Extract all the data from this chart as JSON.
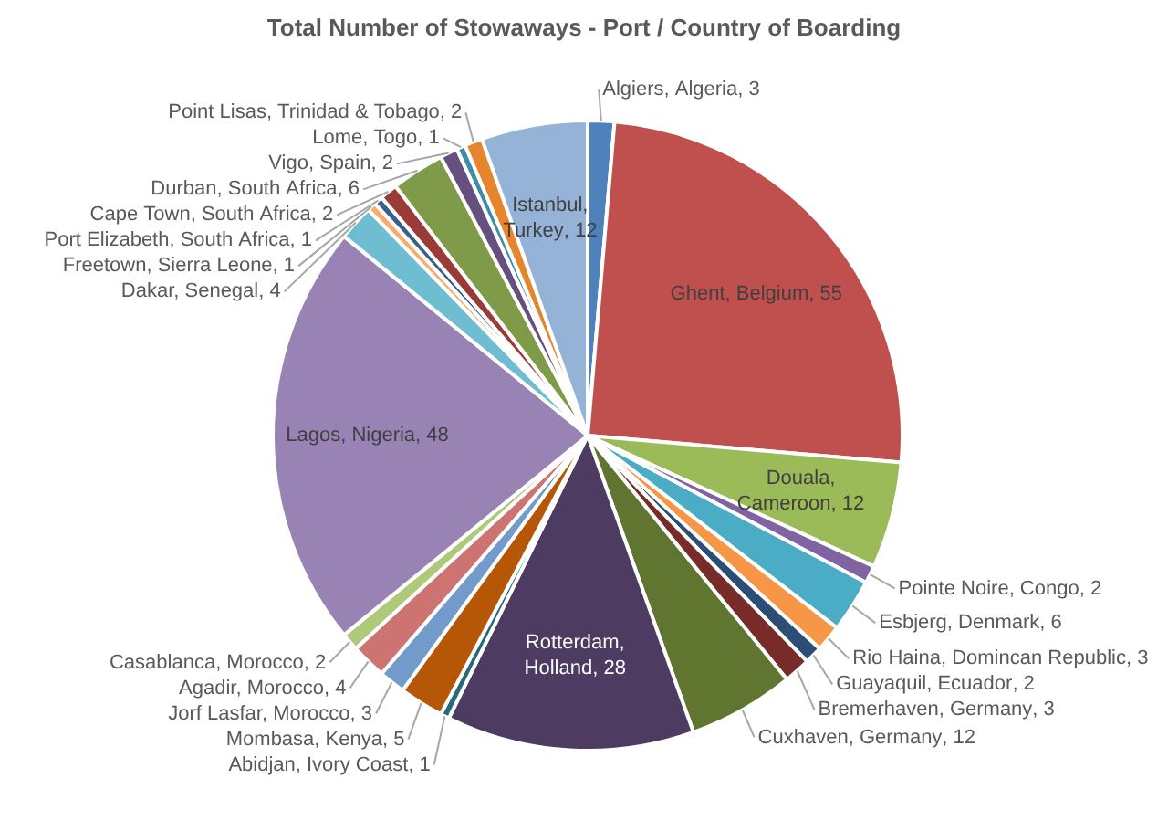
{
  "chart_data": {
    "type": "pie",
    "title": "Total Number of Stowaways - Port / Country of Boarding",
    "categories": [
      "Algiers, Algeria",
      "Ghent, Belgium",
      "Douala, Cameroon",
      "Pointe Noire, Congo",
      "Esbjerg, Denmark",
      "Rio Haina, Domincan Republic",
      "Guayaquil, Ecuador",
      "Bremerhaven, Germany",
      "Cuxhaven, Germany",
      "Rotterdam, Holland",
      "Abidjan, Ivory Coast",
      "Mombasa, Kenya",
      "Jorf Lasfar, Morocco",
      "Agadir, Morocco",
      "Casablanca, Morocco",
      "Lagos, Nigeria",
      "Dakar, Senegal",
      "Freetown, Sierra Leone",
      "Port Elizabeth, South Africa",
      "Cape Town, South Africa",
      "Durban, South Africa",
      "Vigo, Spain",
      "Lome, Togo",
      "Point Lisas, Trinidad & Tobago",
      "Istanbul, Turkey"
    ],
    "values": [
      3,
      55,
      12,
      2,
      6,
      3,
      2,
      3,
      12,
      28,
      1,
      5,
      3,
      4,
      2,
      48,
      4,
      1,
      1,
      2,
      6,
      2,
      1,
      2,
      12
    ],
    "colors": [
      "#4f81bd",
      "#c0504d",
      "#9bbb59",
      "#8064a2",
      "#4bacc6",
      "#f79646",
      "#2c4d75",
      "#772c2a",
      "#5f7530",
      "#4d3b62",
      "#276a7c",
      "#b65708",
      "#729aca",
      "#cd7371",
      "#afc97a",
      "#9983b5",
      "#6fbdd1",
      "#f9ab6b",
      "#3a5f8b",
      "#9b3b38",
      "#7f9a48",
      "#65507f",
      "#3b8ea5",
      "#e7852c",
      "#95b3d7"
    ],
    "value_labels": [
      ", 3",
      ", 55",
      ", 12",
      ", 2",
      ", 6",
      ", 3",
      ", 2",
      ", 3",
      ", 12",
      ", 28",
      ", 1",
      ", 5",
      ", 3",
      ", 4",
      ", 2",
      ", 48",
      ", 4",
      ", 1",
      ", 1",
      ", 2",
      ", 6",
      ", 2",
      ", 1",
      ", 2",
      ", 12"
    ],
    "legend": false
  }
}
